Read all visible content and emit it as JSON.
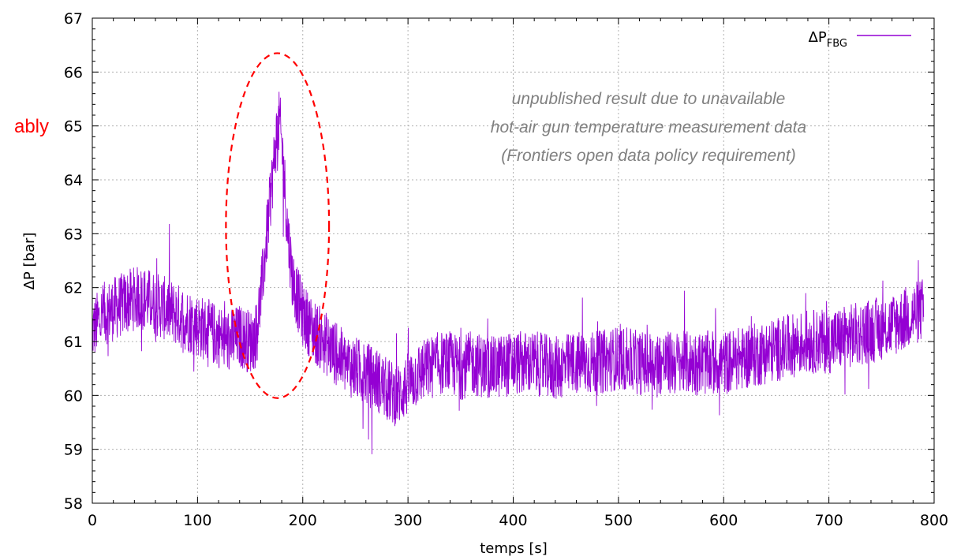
{
  "chart_data": {
    "type": "line",
    "title": "",
    "xlabel": "temps [s]",
    "ylabel": "ΔP [bar]",
    "xlim": [
      0,
      800
    ],
    "ylim": [
      58,
      67
    ],
    "x_ticks": [
      "0",
      "100",
      "200",
      "300",
      "400",
      "500",
      "600",
      "700",
      "800"
    ],
    "y_ticks": [
      "58",
      "59",
      "60",
      "61",
      "62",
      "63",
      "64",
      "65",
      "66",
      "67"
    ],
    "grid": true,
    "legend_position": "top-right",
    "series": [
      {
        "name_main": "ΔP",
        "name_sub": "FBG",
        "color": "#9400d3",
        "x": [
          0,
          10,
          20,
          30,
          40,
          50,
          60,
          70,
          80,
          90,
          100,
          110,
          120,
          130,
          140,
          150,
          155,
          160,
          165,
          170,
          175,
          178,
          182,
          185,
          190,
          195,
          200,
          210,
          220,
          230,
          240,
          250,
          260,
          270,
          280,
          290,
          300,
          310,
          320,
          330,
          340,
          350,
          360,
          380,
          400,
          420,
          440,
          460,
          480,
          500,
          520,
          540,
          560,
          580,
          600,
          620,
          640,
          660,
          680,
          700,
          720,
          740,
          760,
          780,
          790
        ],
        "y": [
          61.2,
          61.5,
          61.6,
          61.7,
          61.8,
          61.8,
          61.7,
          61.6,
          61.5,
          61.4,
          61.3,
          61.2,
          61.1,
          61.0,
          61.1,
          61.0,
          61.1,
          61.8,
          62.8,
          63.8,
          64.8,
          65.1,
          64.2,
          63.2,
          62.2,
          61.8,
          61.5,
          61.2,
          61.0,
          60.8,
          60.6,
          60.5,
          60.4,
          60.3,
          60.1,
          60.0,
          60.2,
          60.4,
          60.5,
          60.6,
          60.6,
          60.5,
          60.6,
          60.5,
          60.6,
          60.6,
          60.5,
          60.6,
          60.6,
          60.7,
          60.6,
          60.6,
          60.6,
          60.6,
          60.6,
          60.7,
          60.8,
          60.9,
          61.0,
          61.0,
          61.1,
          61.2,
          61.3,
          61.5,
          61.6
        ],
        "noise_amplitude": 0.6
      }
    ],
    "annotations": [
      "unpublished result due to unavailable",
      "hot-air gun temperature measurement data",
      "(Frontiers open data policy requirement)"
    ],
    "highlight_ellipse": {
      "x_center": 176,
      "y_center": 63.15,
      "x_radius": 49,
      "y_radius": 3.2,
      "color": "#ff0000"
    },
    "side_note": "ably"
  }
}
